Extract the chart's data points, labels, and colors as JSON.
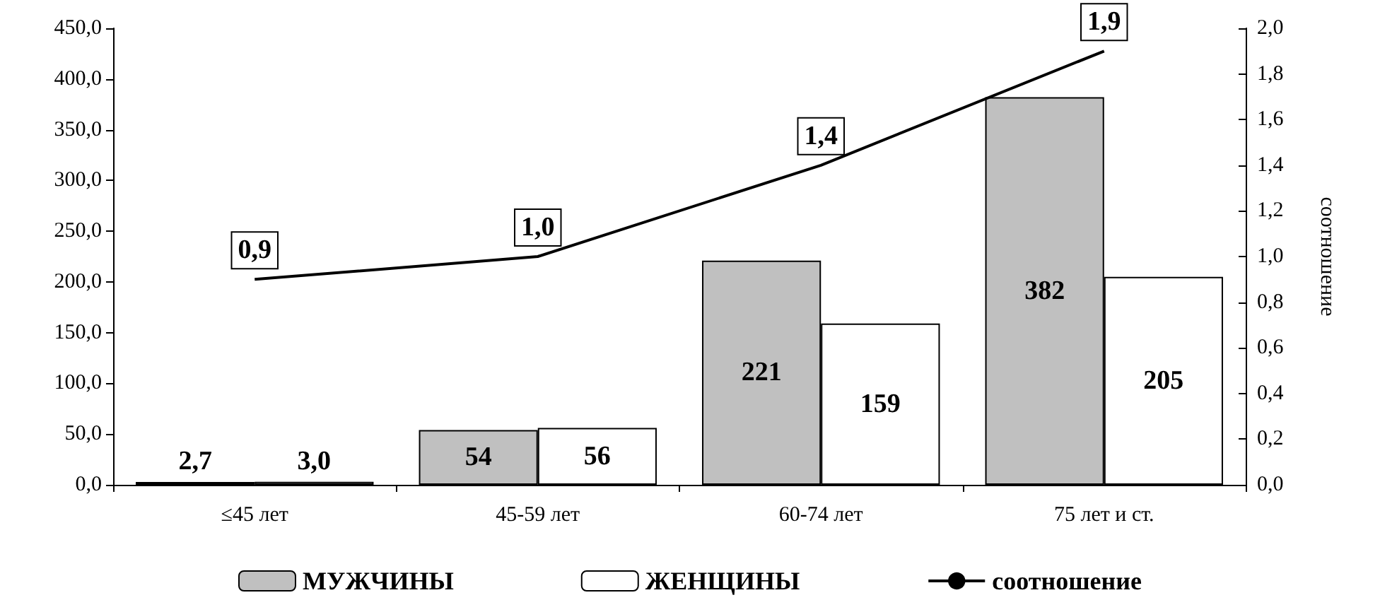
{
  "chart_data": {
    "type": "bar",
    "categories": [
      "≤45 лет",
      "45-59 лет",
      "60-74 лет",
      "75 лет и ст."
    ],
    "series": [
      {
        "name": "МУЖЧИНЫ",
        "color": "#c0c0c0",
        "values": [
          2.7,
          54,
          221,
          382
        ],
        "value_labels": [
          "2,7",
          "54",
          "221",
          "382"
        ]
      },
      {
        "name": "ЖЕНЩИНЫ",
        "color": "#ffffff",
        "values": [
          3.0,
          56,
          159,
          205
        ],
        "value_labels": [
          "3,0",
          "56",
          "159",
          "205"
        ]
      },
      {
        "name": "соотношение",
        "type": "line",
        "axis": "y2",
        "color": "#000000",
        "values": [
          0.9,
          1.0,
          1.4,
          1.9
        ],
        "value_labels": [
          "0,9",
          "1,0",
          "1,4",
          "1,9"
        ]
      }
    ],
    "ylim": [
      0,
      450
    ],
    "yticks": [
      {
        "value": 0,
        "label": "0,0"
      },
      {
        "value": 50,
        "label": "50,0"
      },
      {
        "value": 100,
        "label": "100,0"
      },
      {
        "value": 150,
        "label": "150,0"
      },
      {
        "value": 200,
        "label": "200,0"
      },
      {
        "value": 250,
        "label": "250,0"
      },
      {
        "value": 300,
        "label": "300,0"
      },
      {
        "value": 350,
        "label": "350,0"
      },
      {
        "value": 400,
        "label": "400,0"
      },
      {
        "value": 450,
        "label": "450,0"
      }
    ],
    "y2lim": [
      0,
      2
    ],
    "y2ticks": [
      {
        "value": 0,
        "label": "0,0"
      },
      {
        "value": 0.2,
        "label": "0,2"
      },
      {
        "value": 0.4,
        "label": "0,4"
      },
      {
        "value": 0.6,
        "label": "0,6"
      },
      {
        "value": 0.8,
        "label": "0,8"
      },
      {
        "value": 1,
        "label": "1,0"
      },
      {
        "value": 1.2,
        "label": "1,2"
      },
      {
        "value": 1.4,
        "label": "1,4"
      },
      {
        "value": 1.6,
        "label": "1,6"
      },
      {
        "value": 1.8,
        "label": "1,8"
      },
      {
        "value": 2,
        "label": "2,0"
      }
    ],
    "y2label": "соотношение",
    "legend": "bottom",
    "grid": false,
    "marker": "none"
  }
}
